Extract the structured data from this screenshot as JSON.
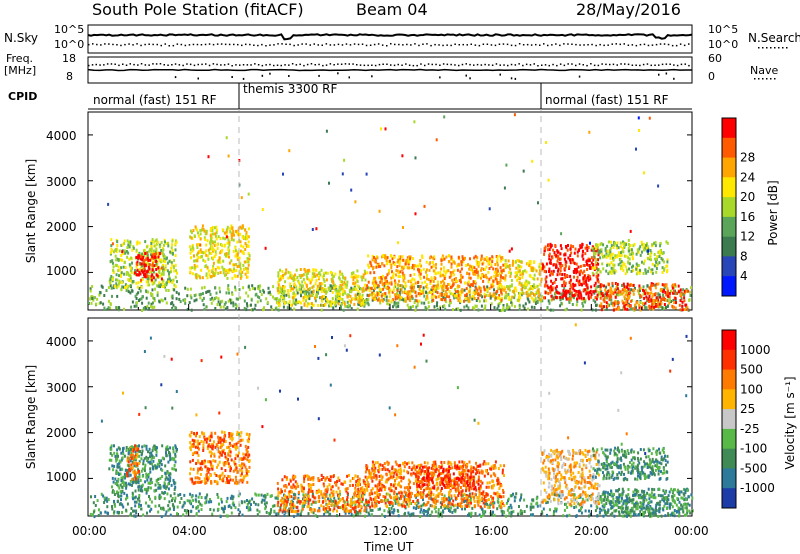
{
  "header": {
    "station": "South Pole Station (fitACF)",
    "beam": "Beam 04",
    "date": "28/May/2016"
  },
  "noise_panel": {
    "left_label": "N.Sky",
    "right_label": "N.Search",
    "tick_top": "10^5",
    "tick_bottom": "10^0"
  },
  "freq_panel": {
    "left_label_line1": "Freq.",
    "left_label_line2": "[MHz]",
    "left_ticks": [
      "18",
      "8"
    ],
    "right_label": "Nave",
    "right_ticks": [
      "60",
      "0"
    ]
  },
  "cpid": {
    "label": "CPID",
    "segments": [
      {
        "text": "normal (fast) 151 RF",
        "start_hr": 0,
        "end_hr": 6
      },
      {
        "text": "themis 3300 RF",
        "start_hr": 6,
        "end_hr": 18
      },
      {
        "text": "normal (fast) 151 RF",
        "start_hr": 18,
        "end_hr": 24
      }
    ]
  },
  "time_axis": {
    "ticks": [
      "00:00",
      "04:00",
      "08:00",
      "12:00",
      "16:00",
      "20:00",
      "00:00"
    ],
    "label": "Time UT"
  },
  "power_panel": {
    "ylabel": "Slant Range [km]",
    "yticks": [
      "1000",
      "2000",
      "3000",
      "4000"
    ],
    "colorbar_label": "Power [dB]",
    "colorbar_ticks": [
      "4",
      "8",
      "12",
      "16",
      "20",
      "24",
      "28"
    ],
    "colors": [
      "#0018ff",
      "#2846b8",
      "#3c7a50",
      "#5aa55a",
      "#a8d82a",
      "#ffe800",
      "#ffa500",
      "#ff5a00",
      "#ff0000"
    ]
  },
  "velocity_panel": {
    "ylabel": "Slant Range [km]",
    "yticks": [
      "1000",
      "2000",
      "3000",
      "4000"
    ],
    "colorbar_label": "Velocity [m s⁻¹]",
    "colorbar_ticks": [
      "1000",
      "500",
      "100",
      "25",
      "-25",
      "-100",
      "-500",
      "-1000"
    ],
    "colors": [
      "#1e3ca8",
      "#2d7a9a",
      "#3f8a55",
      "#58b848",
      "#c8c8c8",
      "#ffb400",
      "#ff7a00",
      "#ff3000",
      "#ff0000"
    ]
  },
  "chart_data": {
    "type": "heatmap",
    "x_range_hours": [
      0,
      24
    ],
    "y_range_km": [
      180,
      4500
    ],
    "vertical_markers_hr": [
      6,
      18
    ],
    "power_regions": [
      {
        "t0": 0.0,
        "t1": 24.0,
        "r0": 200,
        "r1": 750,
        "level": 3
      },
      {
        "t0": 0.8,
        "t1": 3.5,
        "r0": 700,
        "r1": 1750,
        "level": 4
      },
      {
        "t0": 1.8,
        "t1": 2.9,
        "r0": 850,
        "r1": 1450,
        "level": 8
      },
      {
        "t0": 4.0,
        "t1": 6.4,
        "r0": 900,
        "r1": 2050,
        "level": 5
      },
      {
        "t0": 7.5,
        "t1": 11.0,
        "r0": 300,
        "r1": 1100,
        "level": 5
      },
      {
        "t0": 11.0,
        "t1": 16.5,
        "r0": 400,
        "r1": 1400,
        "level": 6
      },
      {
        "t0": 16.5,
        "t1": 18.0,
        "r0": 400,
        "r1": 1300,
        "level": 5
      },
      {
        "t0": 18.0,
        "t1": 20.3,
        "r0": 450,
        "r1": 1650,
        "level": 8
      },
      {
        "t0": 20.3,
        "t1": 23.8,
        "r0": 200,
        "r1": 800,
        "level": 7
      },
      {
        "t0": 20.0,
        "t1": 23.0,
        "r0": 1000,
        "r1": 1700,
        "level": 4
      }
    ],
    "velocity_regions": [
      {
        "t0": 0.0,
        "t1": 24.0,
        "r0": 200,
        "r1": 700,
        "level": 2
      },
      {
        "t0": 0.8,
        "t1": 3.5,
        "r0": 700,
        "r1": 1750,
        "level": 2
      },
      {
        "t0": 1.5,
        "t1": 2.0,
        "r0": 1000,
        "r1": 1750,
        "level": 6
      },
      {
        "t0": 4.0,
        "t1": 6.4,
        "r0": 900,
        "r1": 2050,
        "level": 6
      },
      {
        "t0": 7.5,
        "t1": 11.0,
        "r0": 300,
        "r1": 1100,
        "level": 6
      },
      {
        "t0": 11.0,
        "t1": 16.5,
        "r0": 400,
        "r1": 1400,
        "level": 6
      },
      {
        "t0": 13.0,
        "t1": 15.5,
        "r0": 800,
        "r1": 1300,
        "level": 7
      },
      {
        "t0": 18.0,
        "t1": 20.3,
        "r0": 450,
        "r1": 1650,
        "level": 5
      },
      {
        "t0": 20.3,
        "t1": 23.8,
        "r0": 200,
        "r1": 800,
        "level": 2
      },
      {
        "t0": 20.0,
        "t1": 23.0,
        "r0": 1000,
        "r1": 1700,
        "level": 2
      }
    ]
  }
}
